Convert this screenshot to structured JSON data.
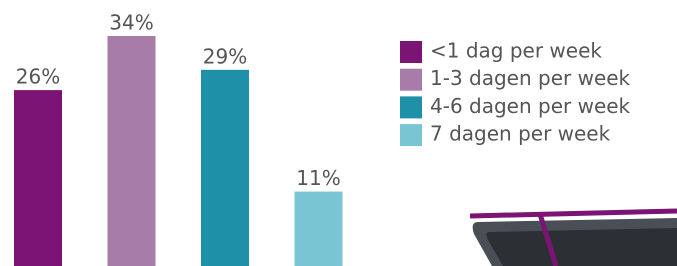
{
  "chart_data": {
    "type": "bar",
    "categories": [
      "<1 dag per week",
      "1-3 dagen per week",
      "4-6 dagen per week",
      "7 dagen per week"
    ],
    "values": [
      26,
      34,
      29,
      11
    ],
    "value_labels": [
      "26%",
      "34%",
      "29%",
      "11%"
    ],
    "colors": [
      "#7b1474",
      "#a77ca9",
      "#1e91a8",
      "#79c5d3"
    ],
    "legend": "right"
  }
}
